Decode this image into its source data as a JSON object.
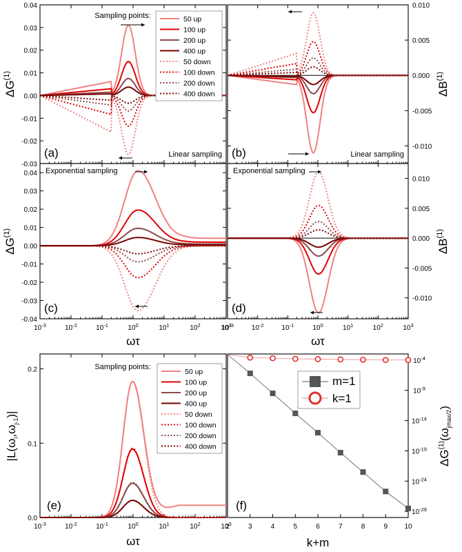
{
  "figure": {
    "panel_a": {
      "letter": "(a)",
      "note": "Linear sampling",
      "legend_title": "Sampling points:"
    },
    "panel_b": {
      "letter": "(b)",
      "note": "Linear sampling"
    },
    "panel_c": {
      "letter": "(c)",
      "note": "Exponential sampling"
    },
    "panel_d": {
      "letter": "(d)",
      "note": "Exponential sampling"
    },
    "panel_e": {
      "letter": "(e)",
      "legend_title": "Sampling points:"
    },
    "panel_f": {
      "letter": "(f)"
    },
    "ylabel_G": "ΔG",
    "ylabel_B": "ΔB",
    "ylabel_sup": "(1)",
    "xlabel": "ωτ",
    "ylabel_L": "|L(ω_i,ω_j-1)|",
    "ylabel_f": "ΔG(1)(ωjmax/2)",
    "xlabel_f": "k+m"
  },
  "chart_data": [
    {
      "panel": "a",
      "type": "line",
      "xscale": "log",
      "xlim": [
        0.001,
        1000
      ],
      "ylim": [
        -0.03,
        0.04
      ],
      "ylabel": "ΔG(1)",
      "yticks": [
        "-0.03",
        "-0.02",
        "-0.01",
        "0.00",
        "0.01",
        "0.02",
        "0.03",
        "0.04"
      ],
      "series": [
        {
          "name": "50 up",
          "peak": 0.031
        },
        {
          "name": "100 up",
          "peak": 0.015
        },
        {
          "name": "200 up",
          "peak": 0.0075
        },
        {
          "name": "400 up",
          "peak": 0.0037
        },
        {
          "name": "50 down",
          "peak": -0.026
        },
        {
          "name": "100 down",
          "peak": -0.0135
        },
        {
          "name": "200 down",
          "peak": -0.0068
        },
        {
          "name": "400 down",
          "peak": -0.0034
        }
      ]
    },
    {
      "panel": "b",
      "type": "line",
      "xscale": "log",
      "xlim": [
        0.001,
        1000
      ],
      "ylim": [
        -0.0125,
        0.01
      ],
      "ylabel": "ΔB(1)",
      "yticks": [
        "-0.010",
        "-0.005",
        "0.000",
        "0.005",
        "0.010"
      ],
      "series": [
        {
          "name": "50 up",
          "peak": -0.011
        },
        {
          "name": "100 up",
          "peak": -0.0053
        },
        {
          "name": "200 up",
          "peak": -0.0026
        },
        {
          "name": "400 up",
          "peak": -0.0013
        },
        {
          "name": "50 down",
          "peak": 0.0089
        },
        {
          "name": "100 down",
          "peak": 0.0048
        },
        {
          "name": "200 down",
          "peak": 0.0025
        },
        {
          "name": "400 down",
          "peak": 0.0012
        }
      ]
    },
    {
      "panel": "c",
      "type": "line",
      "xscale": "log",
      "xlim": [
        0.001,
        1000
      ],
      "ylim": [
        -0.04,
        0.045
      ],
      "ylabel": "ΔG(1)",
      "yticks": [
        "-0.04",
        "-0.03",
        "-0.02",
        "-0.01",
        "0.00",
        "0.01",
        "0.02",
        "0.03",
        "0.04"
      ],
      "series": [
        {
          "name": "50 up",
          "peak": 0.041
        },
        {
          "name": "100 up",
          "peak": 0.0195
        },
        {
          "name": "200 up",
          "peak": 0.0095
        },
        {
          "name": "400 up",
          "peak": 0.0045
        },
        {
          "name": "50 down",
          "peak": -0.0355
        },
        {
          "name": "100 down",
          "peak": -0.0175
        },
        {
          "name": "200 down",
          "peak": -0.0088
        },
        {
          "name": "400 down",
          "peak": -0.0044
        }
      ]
    },
    {
      "panel": "d",
      "type": "line",
      "xscale": "log",
      "xlim": [
        0.001,
        1000
      ],
      "ylim": [
        -0.0135,
        0.0125
      ],
      "ylabel": "ΔB(1)",
      "yticks": [
        "-0.010",
        "-0.005",
        "0.000",
        "0.005",
        "0.010"
      ],
      "series": [
        {
          "name": "50 up",
          "peak": -0.0125
        },
        {
          "name": "100 up",
          "peak": -0.006
        },
        {
          "name": "200 up",
          "peak": -0.003
        },
        {
          "name": "400 up",
          "peak": -0.0015
        },
        {
          "name": "50 down",
          "peak": 0.0111
        },
        {
          "name": "100 down",
          "peak": 0.0055
        },
        {
          "name": "200 down",
          "peak": 0.0028
        },
        {
          "name": "400 down",
          "peak": 0.0014
        }
      ]
    },
    {
      "panel": "e",
      "type": "line",
      "xscale": "log",
      "xlim": [
        0.001,
        1000
      ],
      "ylim": [
        0,
        0.22
      ],
      "ylabel": "|L(ω_i,ω_j-1)|",
      "yticks": [
        "0.0",
        "0.1",
        "0.2"
      ],
      "series": [
        {
          "name": "50 up",
          "peak": 0.183
        },
        {
          "name": "100 up",
          "peak": 0.092
        },
        {
          "name": "200 up",
          "peak": 0.046
        },
        {
          "name": "400 up",
          "peak": 0.023
        },
        {
          "name": "50 down",
          "peak": 0.183
        },
        {
          "name": "100 down",
          "peak": 0.093
        },
        {
          "name": "200 down",
          "peak": 0.047
        },
        {
          "name": "400 down",
          "peak": 0.023
        }
      ]
    },
    {
      "panel": "f",
      "type": "scatter",
      "yscale": "log",
      "xlim": [
        2,
        10
      ],
      "xticks": [
        "2",
        "3",
        "4",
        "5",
        "6",
        "7",
        "8",
        "9",
        "10"
      ],
      "yticks": [
        "10-4",
        "10-9",
        "10-14",
        "10-19",
        "10-24",
        "10-29"
      ],
      "series": [
        {
          "name": "m=1",
          "x": [
            3,
            4,
            5,
            6,
            7,
            8,
            9,
            10
          ],
          "logy": [
            -6.2,
            -9.5,
            -12.8,
            -16.0,
            -19.3,
            -22.5,
            -25.7,
            -28.5
          ]
        },
        {
          "name": "k=1",
          "x": [
            3,
            4,
            5,
            6,
            7,
            8,
            9,
            10
          ],
          "logy": [
            -3.6,
            -3.7,
            -3.8,
            -3.85,
            -3.9,
            -3.95,
            -4.0,
            -4.0
          ]
        }
      ]
    }
  ],
  "legend": {
    "up": [
      "50 up",
      "100 up",
      "200 up",
      "400 up"
    ],
    "down": [
      "50 down",
      "100 down",
      "200 down",
      "400 down"
    ],
    "f": [
      "m=1",
      "k=1"
    ]
  },
  "colors": [
    "#f08080",
    "#e00000",
    "#8b4a4a",
    "#7a0000"
  ],
  "xticks_log": [
    "10-3",
    "10-2",
    "10-1",
    "100",
    "101",
    "102",
    "103"
  ]
}
